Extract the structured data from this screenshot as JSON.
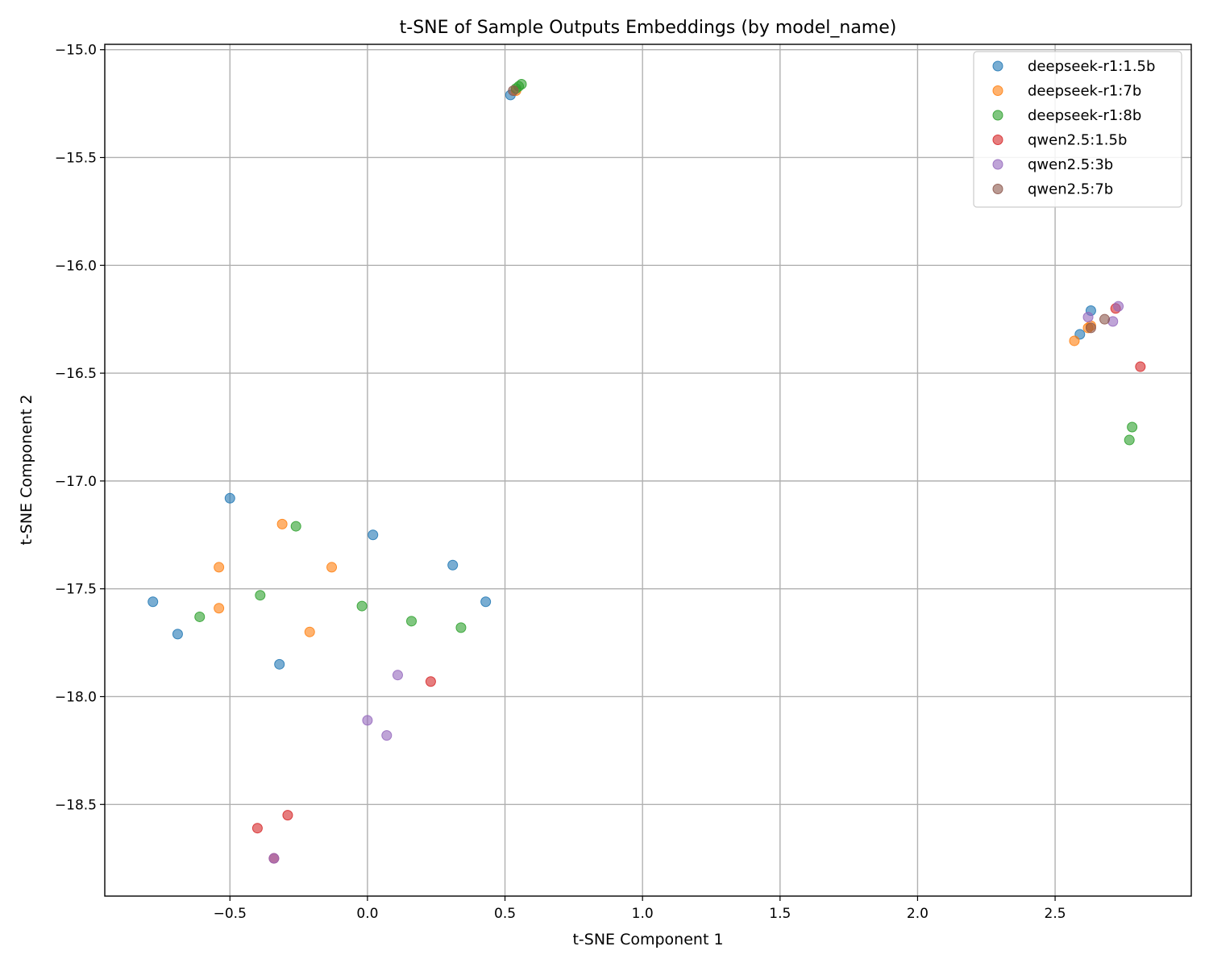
{
  "chart_data": {
    "type": "scatter",
    "title": "t-SNE of Sample Outputs Embeddings (by model_name)",
    "xlabel": "t-SNE Component 1",
    "ylabel": "t-SNE Component 2",
    "xlim": [
      -0.955,
      2.995
    ],
    "ylim": [
      -18.925,
      -14.975
    ],
    "xticks": [
      -0.5,
      0.0,
      0.5,
      1.0,
      1.5,
      2.0,
      2.5
    ],
    "xtick_labels": [
      "−0.5",
      "0.0",
      "0.5",
      "1.0",
      "1.5",
      "2.0",
      "2.5"
    ],
    "yticks": [
      -15.0,
      -15.5,
      -16.0,
      -16.5,
      -17.0,
      -17.5,
      -18.0,
      -18.5
    ],
    "ytick_labels": [
      "−15.0",
      "−15.5",
      "−16.0",
      "−16.5",
      "−17.0",
      "−17.5",
      "−18.0",
      "−18.5"
    ],
    "grid": true,
    "legend_position": "top-right",
    "marker_alpha": 0.6,
    "series": [
      {
        "name": "deepseek-r1:1.5b",
        "color": "#1f77b4",
        "points": [
          [
            0.52,
            -15.21
          ],
          [
            2.63,
            -16.21
          ],
          [
            2.59,
            -16.32
          ],
          [
            -0.5,
            -17.08
          ],
          [
            0.02,
            -17.25
          ],
          [
            -0.78,
            -17.56
          ],
          [
            -0.69,
            -17.71
          ],
          [
            0.31,
            -17.39
          ],
          [
            0.43,
            -17.56
          ],
          [
            -0.32,
            -17.85
          ]
        ]
      },
      {
        "name": "deepseek-r1:7b",
        "color": "#ff7f0e",
        "points": [
          [
            0.54,
            -15.19
          ],
          [
            2.57,
            -16.35
          ],
          [
            2.62,
            -16.29
          ],
          [
            2.63,
            -16.28
          ],
          [
            -0.31,
            -17.2
          ],
          [
            -0.54,
            -17.4
          ],
          [
            -0.13,
            -17.4
          ],
          [
            -0.54,
            -17.59
          ],
          [
            -0.21,
            -17.7
          ]
        ]
      },
      {
        "name": "deepseek-r1:8b",
        "color": "#2ca02c",
        "points": [
          [
            0.55,
            -15.17
          ],
          [
            0.56,
            -15.16
          ],
          [
            0.54,
            -15.18
          ],
          [
            2.78,
            -16.75
          ],
          [
            2.77,
            -16.81
          ],
          [
            -0.26,
            -17.21
          ],
          [
            -0.39,
            -17.53
          ],
          [
            -0.02,
            -17.58
          ],
          [
            -0.61,
            -17.63
          ],
          [
            0.16,
            -17.65
          ],
          [
            0.34,
            -17.68
          ]
        ]
      },
      {
        "name": "qwen2.5:1.5b",
        "color": "#d62728",
        "points": [
          [
            2.72,
            -16.2
          ],
          [
            2.81,
            -16.47
          ],
          [
            0.23,
            -17.93
          ],
          [
            -0.4,
            -18.61
          ],
          [
            -0.29,
            -18.55
          ],
          [
            -0.34,
            -18.75
          ]
        ]
      },
      {
        "name": "qwen2.5:3b",
        "color": "#9467bd",
        "points": [
          [
            2.73,
            -16.19
          ],
          [
            2.62,
            -16.24
          ],
          [
            2.71,
            -16.26
          ],
          [
            0.11,
            -17.9
          ],
          [
            0.0,
            -18.11
          ],
          [
            0.07,
            -18.18
          ],
          [
            -0.34,
            -18.75
          ]
        ]
      },
      {
        "name": "qwen2.5:7b",
        "color": "#8c564b",
        "points": [
          [
            0.53,
            -15.19
          ],
          [
            2.68,
            -16.25
          ],
          [
            2.63,
            -16.29
          ]
        ]
      }
    ]
  }
}
